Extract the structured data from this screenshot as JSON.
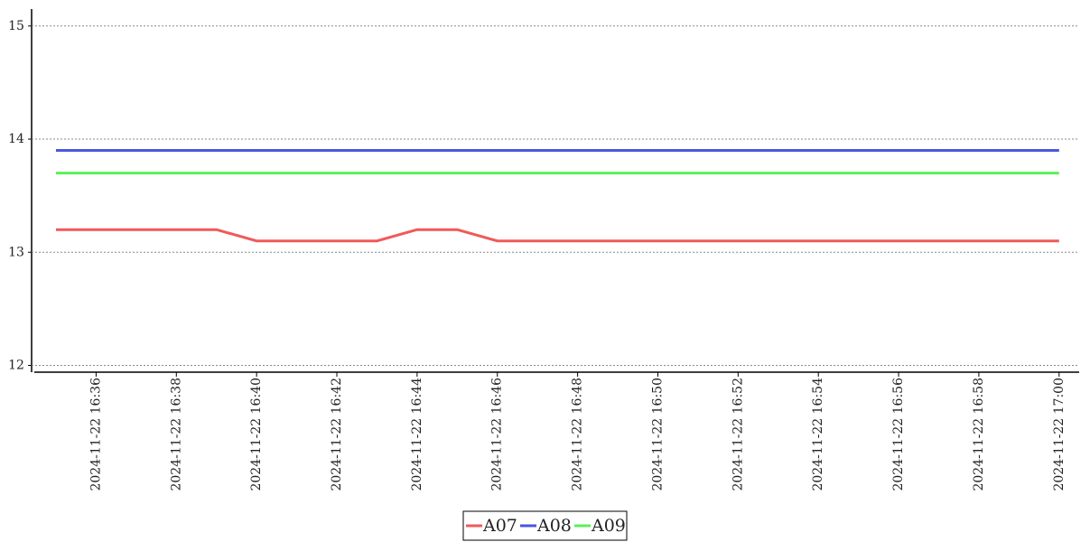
{
  "chart_data": {
    "type": "line",
    "x": [
      "2024-11-22 16:35",
      "2024-11-22 16:36",
      "2024-11-22 16:37",
      "2024-11-22 16:38",
      "2024-11-22 16:39",
      "2024-11-22 16:40",
      "2024-11-22 16:41",
      "2024-11-22 16:42",
      "2024-11-22 16:43",
      "2024-11-22 16:44",
      "2024-11-22 16:45",
      "2024-11-22 16:46",
      "2024-11-22 16:47",
      "2024-11-22 16:48",
      "2024-11-22 16:49",
      "2024-11-22 16:50",
      "2024-11-22 16:51",
      "2024-11-22 16:52",
      "2024-11-22 16:53",
      "2024-11-22 16:54",
      "2024-11-22 16:55",
      "2024-11-22 16:56",
      "2024-11-22 16:57",
      "2024-11-22 16:58",
      "2024-11-22 16:59",
      "2024-11-22 17:00"
    ],
    "series": [
      {
        "name": "A07",
        "color": "#f05a5a",
        "values": [
          13.2,
          13.2,
          13.2,
          13.2,
          13.2,
          13.1,
          13.1,
          13.1,
          13.1,
          13.2,
          13.2,
          13.1,
          13.1,
          13.1,
          13.1,
          13.1,
          13.1,
          13.1,
          13.1,
          13.1,
          13.1,
          13.1,
          13.1,
          13.1,
          13.1,
          13.1
        ]
      },
      {
        "name": "A08",
        "color": "#4a55e0",
        "values": [
          13.9,
          13.9,
          13.9,
          13.9,
          13.9,
          13.9,
          13.9,
          13.9,
          13.9,
          13.9,
          13.9,
          13.9,
          13.9,
          13.9,
          13.9,
          13.9,
          13.9,
          13.9,
          13.9,
          13.9,
          13.9,
          13.9,
          13.9,
          13.9,
          13.9,
          13.9
        ]
      },
      {
        "name": "A09",
        "color": "#5af05a",
        "values": [
          13.7,
          13.7,
          13.7,
          13.7,
          13.7,
          13.7,
          13.7,
          13.7,
          13.7,
          13.7,
          13.7,
          13.7,
          13.7,
          13.7,
          13.7,
          13.7,
          13.7,
          13.7,
          13.7,
          13.7,
          13.7,
          13.7,
          13.7,
          13.7,
          13.7,
          13.7
        ]
      }
    ],
    "xticks": [
      "2024-11-22 16:36",
      "2024-11-22 16:38",
      "2024-11-22 16:40",
      "2024-11-22 16:42",
      "2024-11-22 16:44",
      "2024-11-22 16:46",
      "2024-11-22 16:48",
      "2024-11-22 16:50",
      "2024-11-22 16:52",
      "2024-11-22 16:54",
      "2024-11-22 16:56",
      "2024-11-22 16:58",
      "2024-11-22 17:00"
    ],
    "ylim": [
      11.94,
      15.15
    ],
    "yticks": [
      12,
      13,
      14,
      15
    ],
    "grid": true
  }
}
